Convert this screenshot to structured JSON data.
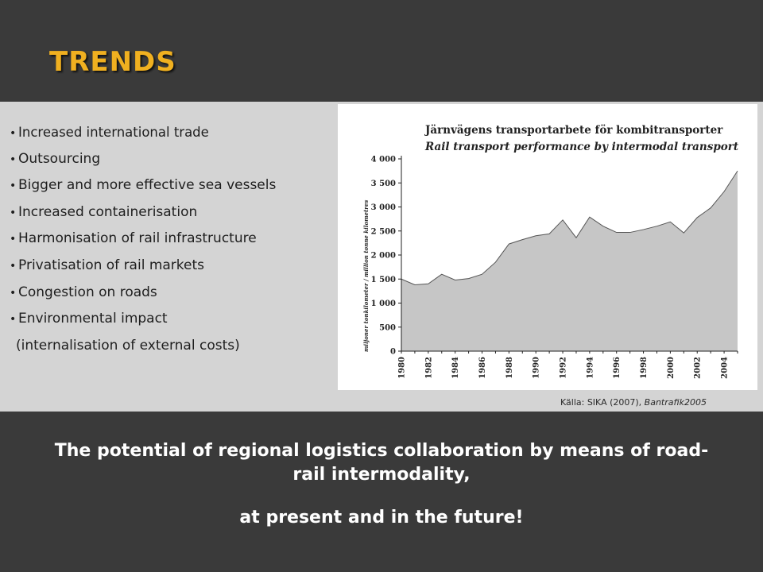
{
  "slide": {
    "title": "TRENDS",
    "bullets": [
      "Increased international trade",
      "Outsourcing",
      "Bigger and more effective sea vessels",
      "Increased containerisation",
      "Harmonisation of rail infrastructure",
      "Privatisation of rail markets",
      "Congestion on roads",
      "Environmental impact"
    ],
    "bullet_continuation": "(internalisation of external costs)",
    "source_prefix": "Källa: SIKA (2007), ",
    "source_italic": "Bantrafik2005",
    "subtitle_line1": "The potential of regional logistics collaboration by means of road-",
    "subtitle_line2": "rail intermodality,",
    "subtitle_line3": "at present and in the future!",
    "colors": {
      "title": "#f0b020",
      "background": "#3a3a3a",
      "band": "#d4d4d4",
      "area_fill": "#c6c6c6"
    }
  },
  "chart_data": {
    "type": "area",
    "title": "Järnvägens transportarbete för kombitransporter",
    "subtitle": "Rail transport performance by intermodal transport",
    "ylabel": "miljoner tonkilometer / million tonne kilometres",
    "xlabel": "",
    "ylim": [
      0,
      4000
    ],
    "yticks": [
      "0",
      "500",
      "1 000",
      "1 500",
      "2 000",
      "2 500",
      "3 000",
      "3 500",
      "4 000"
    ],
    "ytick_values": [
      0,
      500,
      1000,
      1500,
      2000,
      2500,
      3000,
      3500,
      4000
    ],
    "xticks": [
      "1980",
      "1982",
      "1984",
      "1986",
      "1988",
      "1990",
      "1992",
      "1994",
      "1996",
      "1998",
      "2000",
      "2002",
      "2004"
    ],
    "x": [
      1980,
      1981,
      1982,
      1983,
      1984,
      1985,
      1986,
      1987,
      1988,
      1989,
      1990,
      1991,
      1992,
      1993,
      1994,
      1995,
      1996,
      1997,
      1998,
      1999,
      2000,
      2001,
      2002,
      2003,
      2004,
      2005
    ],
    "values": [
      1500,
      1380,
      1400,
      1600,
      1480,
      1510,
      1600,
      1850,
      2230,
      2320,
      2400,
      2440,
      2730,
      2360,
      2790,
      2600,
      2470,
      2470,
      2530,
      2600,
      2690,
      2460,
      2780,
      2980,
      3320,
      3750
    ],
    "grid": false,
    "legend": "none"
  }
}
